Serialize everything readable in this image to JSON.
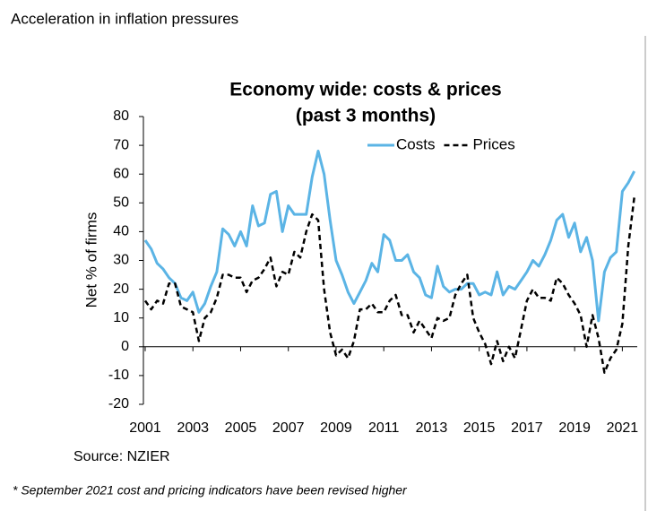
{
  "page_title": "Acceleration in inflation pressures",
  "source": "Source: NZIER",
  "footnote": "* September 2021 cost and pricing indicators have been revised higher",
  "chart_data": {
    "type": "line",
    "title": [
      "Economy wide: costs & prices",
      "(past 3 months)"
    ],
    "ylabel": "Net % of firms",
    "legend": "upper right",
    "xlim": [
      2001,
      2022
    ],
    "xticks": [
      2001,
      2003,
      2005,
      2007,
      2009,
      2011,
      2013,
      2015,
      2017,
      2019,
      2021
    ],
    "ylim": [
      -20,
      80
    ],
    "yticks": [
      -20,
      -10,
      0,
      10,
      20,
      30,
      40,
      50,
      60,
      70,
      80
    ],
    "x": [
      2001,
      2001.25,
      2001.5,
      2001.75,
      2002,
      2002.25,
      2002.5,
      2002.75,
      2003,
      2003.25,
      2003.5,
      2003.75,
      2004,
      2004.25,
      2004.5,
      2004.75,
      2005,
      2005.25,
      2005.5,
      2005.75,
      2006,
      2006.25,
      2006.5,
      2006.75,
      2007,
      2007.25,
      2007.5,
      2007.75,
      2008,
      2008.25,
      2008.5,
      2008.75,
      2009,
      2009.25,
      2009.5,
      2009.75,
      2010,
      2010.25,
      2010.5,
      2010.75,
      2011,
      2011.25,
      2011.5,
      2011.75,
      2012,
      2012.25,
      2012.5,
      2012.75,
      2013,
      2013.25,
      2013.5,
      2013.75,
      2014,
      2014.25,
      2014.5,
      2014.75,
      2015,
      2015.25,
      2015.5,
      2015.75,
      2016,
      2016.25,
      2016.5,
      2016.75,
      2017,
      2017.25,
      2017.5,
      2017.75,
      2018,
      2018.25,
      2018.5,
      2018.75,
      2019,
      2019.25,
      2019.5,
      2019.75,
      2020,
      2020.25,
      2020.5,
      2020.75,
      2021,
      2021.25,
      2021.5
    ],
    "series": [
      {
        "name": "Costs",
        "color": "#5bb4e5",
        "dash": false,
        "values": [
          37,
          34,
          29,
          27,
          24,
          22,
          17,
          16,
          19,
          12,
          15,
          21,
          26,
          41,
          39,
          35,
          40,
          35,
          49,
          42,
          43,
          53,
          54,
          40,
          49,
          46,
          46,
          46,
          59,
          68,
          60,
          44,
          30,
          25,
          19,
          15,
          19,
          23,
          29,
          26,
          39,
          37,
          30,
          30,
          32,
          26,
          24,
          18,
          17,
          28,
          21,
          19,
          20,
          20,
          22,
          22,
          18,
          19,
          18,
          26,
          18,
          21,
          20,
          23,
          26,
          30,
          28,
          32,
          37,
          44,
          46,
          38,
          43,
          33,
          38,
          30,
          9,
          26,
          31,
          33,
          54,
          57,
          61
        ]
      },
      {
        "name": "Prices",
        "color": "#000000",
        "dash": true,
        "values": [
          16,
          13,
          16,
          15,
          22,
          22,
          14,
          13,
          12,
          2,
          10,
          12,
          17,
          25,
          25,
          24,
          24,
          19,
          23,
          24,
          27,
          31,
          21,
          26,
          25,
          33,
          31,
          40,
          46,
          44,
          20,
          5,
          -3,
          -1,
          -4,
          2,
          13,
          13,
          15,
          12,
          12,
          16,
          18,
          11,
          11,
          5,
          9,
          6,
          3,
          10,
          9,
          10,
          18,
          22,
          25,
          10,
          5,
          1,
          -6,
          2,
          -5,
          0,
          -4,
          6,
          16,
          20,
          17,
          17,
          16,
          24,
          22,
          18,
          15,
          11,
          0,
          11,
          3,
          -9,
          -4,
          -1,
          8,
          35,
          52
        ]
      }
    ]
  }
}
